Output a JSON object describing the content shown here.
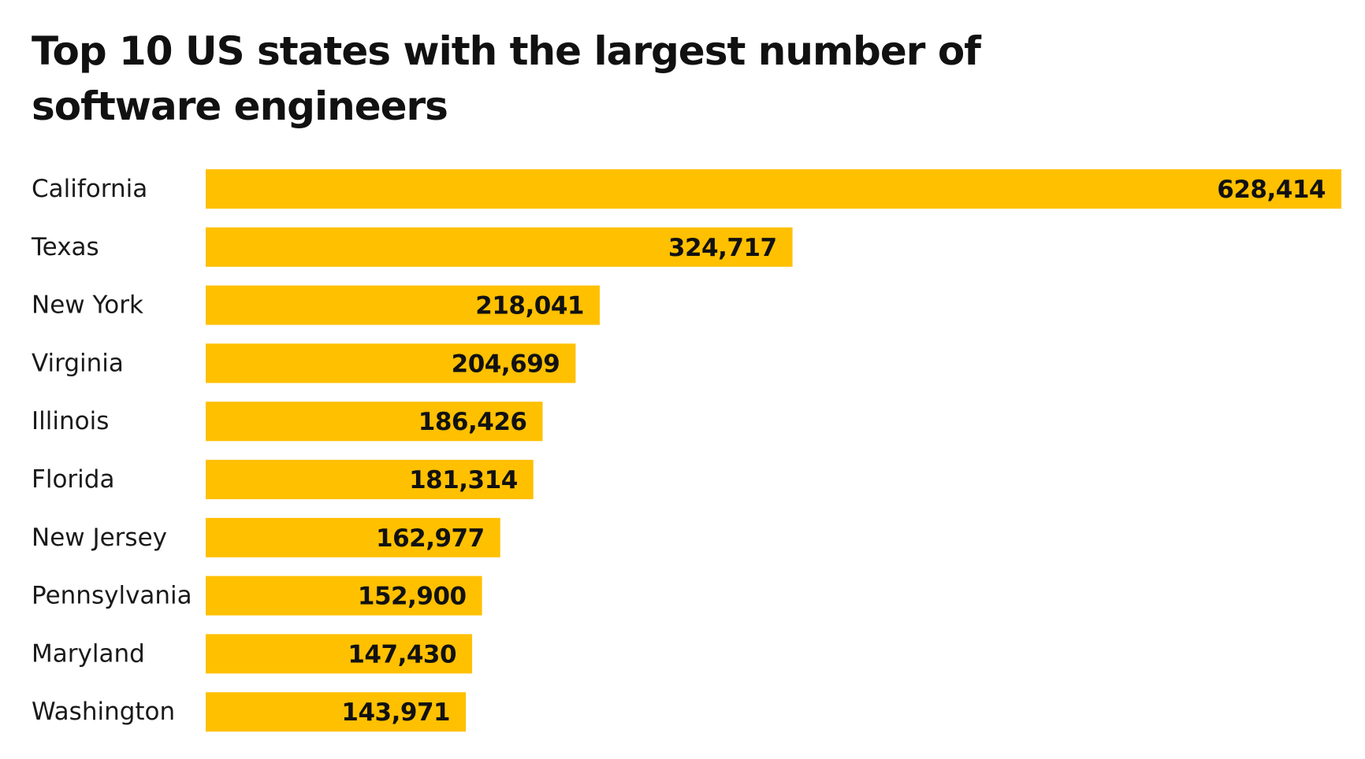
{
  "title": "Top 10 US states with the largest number of software engineers",
  "colors": {
    "bar": "#FFC000",
    "text": "#111111"
  },
  "chart_data": {
    "type": "bar",
    "orientation": "horizontal",
    "title": "Top 10 US states with the largest number of software engineers",
    "categories": [
      "California",
      "Texas",
      "New York",
      "Virginia",
      "Illinois",
      "Florida",
      "New Jersey",
      "Pennsylvania",
      "Maryland",
      "Washington"
    ],
    "values": [
      628414,
      324717,
      218041,
      204699,
      186426,
      181314,
      162977,
      152900,
      147430,
      143971
    ],
    "value_labels": [
      "628,414",
      "324,717",
      "218,041",
      "204,699",
      "186,426",
      "181,314",
      "162,977",
      "152,900",
      "147,430",
      "143,971"
    ],
    "xlim": [
      0,
      628414
    ],
    "grid": false,
    "legend": "none"
  }
}
